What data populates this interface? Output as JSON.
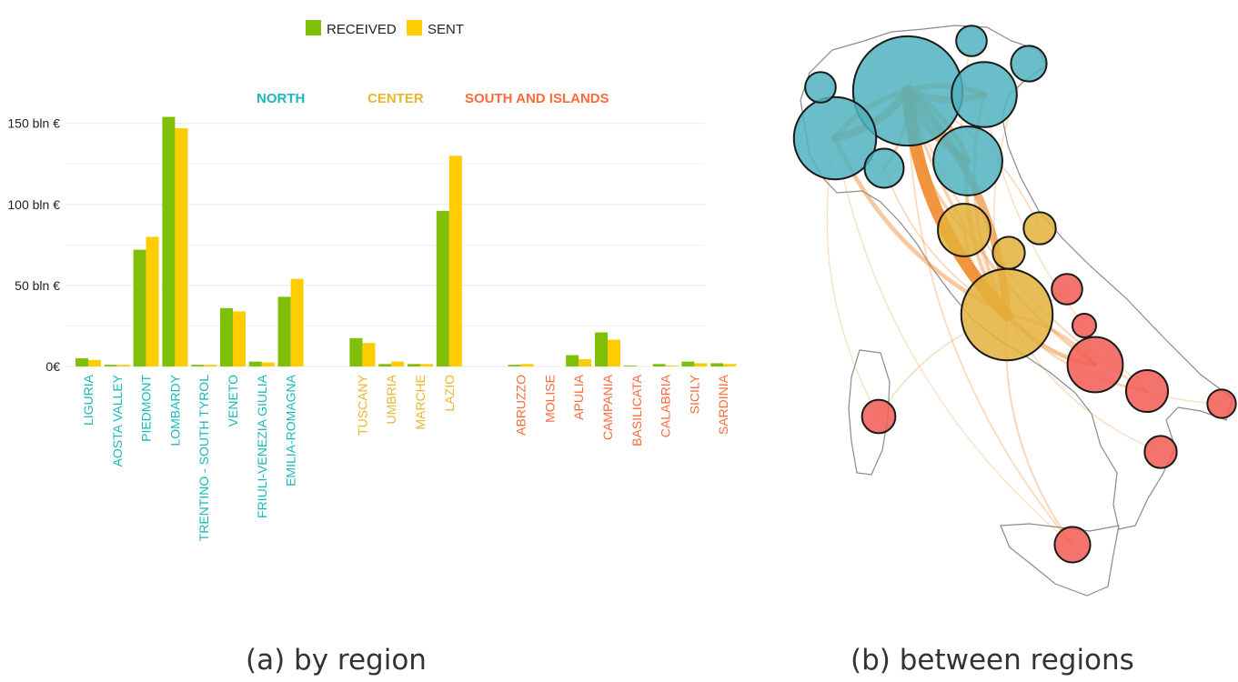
{
  "captions": {
    "a": "(a) by region",
    "b": "(b) between regions"
  },
  "colors": {
    "received": "#80bf08",
    "sent": "#ffcc00",
    "north": "#1ab8bd",
    "center": "#e8b82e",
    "south": "#ff6a3a",
    "grid": "#ebebeb",
    "north_node": "#4fb3bf",
    "center_node": "#e3b23c",
    "south_node": "#f25c54",
    "flow": "#f08a2c",
    "map_outline": "#8a8a8a"
  },
  "chart_data": {
    "type": "bar",
    "title": "",
    "xlabel": "",
    "ylabel": "",
    "ylim": [
      0,
      170
    ],
    "grid": true,
    "legend_placement": "top-center",
    "y_ticks": [
      {
        "value": 0,
        "label": "0€"
      },
      {
        "value": 50,
        "label": "50 bln €"
      },
      {
        "value": 100,
        "label": "100 bln €"
      },
      {
        "value": 150,
        "label": "150 bln €"
      }
    ],
    "groups": [
      {
        "name": "NORTH",
        "color_key": "north",
        "categories": [
          "LIGURIA",
          "AOSTA VALLEY",
          "PIEDMONT",
          "LOMBARDY",
          "TRENTINO - SOUTH TYROL",
          "VENETO",
          "FRIULI-VENEZIA GIULIA",
          "EMILIA-ROMAGNA"
        ]
      },
      {
        "name": "CENTER",
        "color_key": "center",
        "categories": [
          "TUSCANY",
          "UMBRIA",
          "MARCHE",
          "LAZIO"
        ]
      },
      {
        "name": "SOUTH AND ISLANDS",
        "color_key": "south",
        "categories": [
          "ABRUZZO",
          "MOLISE",
          "APULIA",
          "CAMPANIA",
          "BASILICATA",
          "CALABRIA",
          "SICILY",
          "SARDINIA"
        ]
      }
    ],
    "categories": [
      "LIGURIA",
      "AOSTA VALLEY",
      "PIEDMONT",
      "LOMBARDY",
      "TRENTINO - SOUTH TYROL",
      "VENETO",
      "FRIULI-VENEZIA GIULIA",
      "EMILIA-ROMAGNA",
      "TUSCANY",
      "UMBRIA",
      "MARCHE",
      "LAZIO",
      "ABRUZZO",
      "MOLISE",
      "APULIA",
      "CAMPANIA",
      "BASILICATA",
      "CALABRIA",
      "SICILY",
      "SARDINIA"
    ],
    "series": [
      {
        "name": "RECEIVED",
        "color_key": "received",
        "values": [
          5,
          1,
          72,
          154,
          1,
          36,
          3,
          43,
          17.5,
          1.5,
          1.5,
          96,
          1,
          0,
          7,
          21,
          0.5,
          1.5,
          3,
          2
        ]
      },
      {
        "name": "SENT",
        "color_key": "sent",
        "values": [
          4,
          1,
          80,
          147,
          1,
          34,
          2.5,
          54,
          14.5,
          3,
          1.5,
          130,
          1.5,
          0,
          4.5,
          16.5,
          0,
          0.5,
          2,
          1.5
        ]
      }
    ]
  },
  "map_nodes": [
    {
      "region": "LOMBARDY",
      "group": "north",
      "size": 154
    },
    {
      "region": "PIEDMONT",
      "group": "north",
      "size": 72
    },
    {
      "region": "LIGURIA",
      "group": "north",
      "size": 5
    },
    {
      "region": "AOSTA VALLEY",
      "group": "north",
      "size": 1
    },
    {
      "region": "TRENTINO - SOUTH TYROL",
      "group": "north",
      "size": 1
    },
    {
      "region": "FRIULI-VENEZIA GIULIA",
      "group": "north",
      "size": 3
    },
    {
      "region": "VENETO",
      "group": "north",
      "size": 36
    },
    {
      "region": "EMILIA-ROMAGNA",
      "group": "north",
      "size": 43
    },
    {
      "region": "TUSCANY",
      "group": "center",
      "size": 17.5
    },
    {
      "region": "UMBRIA",
      "group": "center",
      "size": 1.5
    },
    {
      "region": "MARCHE",
      "group": "center",
      "size": 1.5
    },
    {
      "region": "LAZIO",
      "group": "center",
      "size": 96
    },
    {
      "region": "ABRUZZO",
      "group": "south",
      "size": 1
    },
    {
      "region": "MOLISE",
      "group": "south",
      "size": 0
    },
    {
      "region": "CAMPANIA",
      "group": "south",
      "size": 21
    },
    {
      "region": "APULIA",
      "group": "south",
      "size": 7
    },
    {
      "region": "BASILICATA",
      "group": "south",
      "size": 0.5
    },
    {
      "region": "CALABRIA",
      "group": "south",
      "size": 1.5
    },
    {
      "region": "SICILY",
      "group": "south",
      "size": 3
    },
    {
      "region": "SARDINIA",
      "group": "south",
      "size": 2
    }
  ],
  "map_flows": [
    {
      "from": "LOMBARDY",
      "to": "LAZIO",
      "weight": 10
    },
    {
      "from": "LAZIO",
      "to": "LOMBARDY",
      "weight": 6
    },
    {
      "from": "PIEDMONT",
      "to": "LOMBARDY",
      "weight": 6
    },
    {
      "from": "LOMBARDY",
      "to": "PIEDMONT",
      "weight": 4
    },
    {
      "from": "LOMBARDY",
      "to": "VENETO",
      "weight": 5
    },
    {
      "from": "LOMBARDY",
      "to": "EMILIA-ROMAGNA",
      "weight": 5
    },
    {
      "from": "VENETO",
      "to": "LOMBARDY",
      "weight": 4
    },
    {
      "from": "EMILIA-ROMAGNA",
      "to": "LOMBARDY",
      "weight": 4
    },
    {
      "from": "PIEDMONT",
      "to": "LAZIO",
      "weight": 3
    },
    {
      "from": "LIGURIA",
      "to": "LOMBARDY",
      "weight": 2
    },
    {
      "from": "LAZIO",
      "to": "CAMPANIA",
      "weight": 3
    },
    {
      "from": "CAMPANIA",
      "to": "LAZIO",
      "weight": 2
    },
    {
      "from": "EMILIA-ROMAGNA",
      "to": "LAZIO",
      "weight": 2.5
    },
    {
      "from": "VENETO",
      "to": "LAZIO",
      "weight": 2
    },
    {
      "from": "TUSCANY",
      "to": "LAZIO",
      "weight": 2
    },
    {
      "from": "LOMBARDY",
      "to": "CAMPANIA",
      "weight": 2
    },
    {
      "from": "LOMBARDY",
      "to": "TUSCANY",
      "weight": 2
    },
    {
      "from": "LAZIO",
      "to": "APULIA",
      "weight": 1.2
    },
    {
      "from": "LAZIO",
      "to": "SICILY",
      "weight": 1
    },
    {
      "from": "LOMBARDY",
      "to": "APULIA",
      "weight": 1
    },
    {
      "from": "LOMBARDY",
      "to": "SICILY",
      "weight": 0.8
    },
    {
      "from": "LAZIO",
      "to": "SARDINIA",
      "weight": 0.6
    },
    {
      "from": "PIEDMONT",
      "to": "SARDINIA",
      "weight": 0.4
    },
    {
      "from": "LAZIO",
      "to": "CALABRIA",
      "weight": 0.6
    },
    {
      "from": "VENETO",
      "to": "APULIA",
      "weight": 0.5
    },
    {
      "from": "FRIULI-VENEZIA GIULIA",
      "to": "LAZIO",
      "weight": 0.6
    },
    {
      "from": "TRENTINO - SOUTH TYROL",
      "to": "LAZIO",
      "weight": 0.5
    },
    {
      "from": "LAZIO",
      "to": "ABRUZZO",
      "weight": 0.8
    },
    {
      "from": "MARCHE",
      "to": "LOMBARDY",
      "weight": 0.8
    },
    {
      "from": "UMBRIA",
      "to": "LAZIO",
      "weight": 0.8
    },
    {
      "from": "PIEDMONT",
      "to": "SICILY",
      "weight": 0.4
    },
    {
      "from": "LAZIO",
      "to": "BASILICATA",
      "weight": 0.5
    },
    {
      "from": "LIGURIA",
      "to": "LAZIO",
      "weight": 0.8
    }
  ]
}
